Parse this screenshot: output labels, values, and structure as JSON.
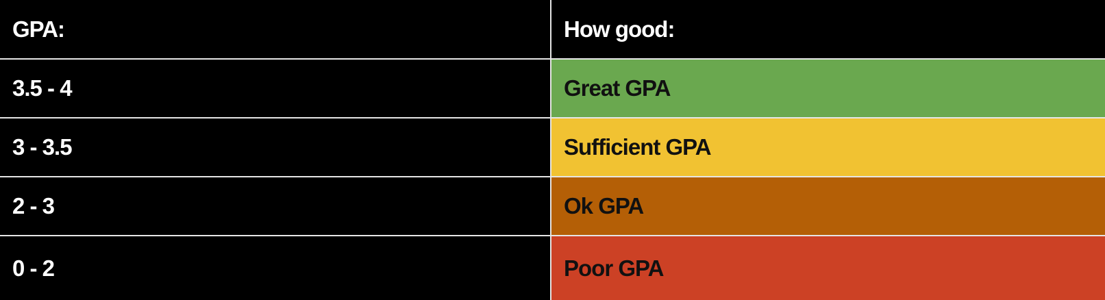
{
  "table": {
    "headers": {
      "gpa": "GPA:",
      "how_good": "How good:"
    },
    "rows": [
      {
        "range": "3.5 - 4",
        "rating": "Great GPA",
        "color": "#6aa84f"
      },
      {
        "range": "3 - 3.5",
        "rating": "Sufficient GPA",
        "color": "#f1c232"
      },
      {
        "range": "2 - 3",
        "rating": "Ok GPA",
        "color": "#b45f06"
      },
      {
        "range": "0 - 2",
        "rating": "Poor GPA",
        "color": "#cc4125"
      }
    ]
  }
}
